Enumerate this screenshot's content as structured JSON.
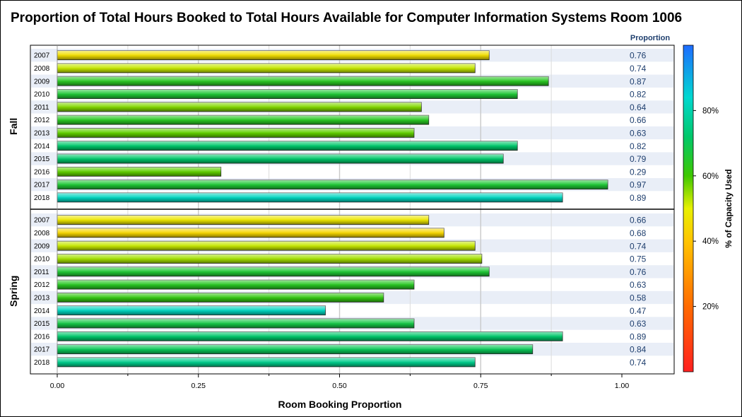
{
  "chart_data": {
    "type": "bar",
    "orientation": "horizontal",
    "title": "Proportion of Total Hours Booked to Total Hours Available for Computer Information Systems Room 1006",
    "xlabel": "Room Booking Proportion",
    "xlim": [
      0,
      1.0
    ],
    "xticks": [
      "0.00",
      "0.25",
      "0.50",
      "0.75",
      "1.00"
    ],
    "value_column_header": "Proportion",
    "panels": [
      {
        "name": "Fall",
        "categories": [
          "2007",
          "2008",
          "2009",
          "2010",
          "2011",
          "2012",
          "2013",
          "2014",
          "2015",
          "2016",
          "2017",
          "2018"
        ],
        "values": [
          0.765,
          0.74,
          0.87,
          0.815,
          0.645,
          0.658,
          0.632,
          0.815,
          0.79,
          0.29,
          0.975,
          0.895
        ],
        "value_labels": [
          "0.76",
          "0.74",
          "0.87",
          "0.82",
          "0.64",
          "0.66",
          "0.63",
          "0.82",
          "0.79",
          "0.29",
          "0.97",
          "0.89"
        ],
        "capacity_used": [
          46,
          52,
          64,
          66,
          56,
          64,
          58,
          72,
          72,
          58,
          66,
          82
        ]
      },
      {
        "name": "Spring",
        "categories": [
          "2007",
          "2008",
          "2009",
          "2010",
          "2011",
          "2012",
          "2013",
          "2014",
          "2015",
          "2016",
          "2017",
          "2018"
        ],
        "values": [
          0.658,
          0.685,
          0.74,
          0.752,
          0.765,
          0.632,
          0.578,
          0.475,
          0.632,
          0.895,
          0.842,
          0.74
        ],
        "value_labels": [
          "0.66",
          "0.68",
          "0.74",
          "0.75",
          "0.76",
          "0.63",
          "0.58",
          "0.47",
          "0.63",
          "0.89",
          "0.84",
          "0.74"
        ],
        "capacity_used": [
          48,
          44,
          52,
          54,
          66,
          64,
          62,
          82,
          68,
          72,
          70,
          76
        ]
      }
    ],
    "colorbar": {
      "title": "% of Capacity Used",
      "ticks": [
        "20%",
        "40%",
        "60%",
        "80%"
      ],
      "tick_values": [
        20,
        40,
        60,
        80
      ],
      "range": [
        0,
        100
      ]
    },
    "grid": true,
    "legend_placement": "right"
  }
}
